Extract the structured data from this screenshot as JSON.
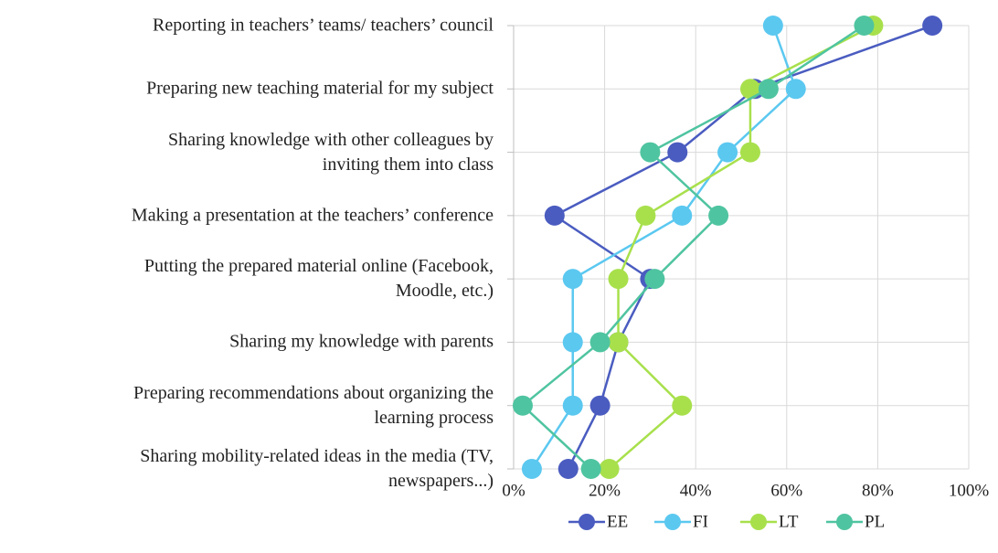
{
  "chart_data": {
    "type": "line",
    "orientation": "horizontal",
    "categories": [
      "Reporting in teachers’ teams/ teachers’ council",
      "Preparing new teaching material for my subject",
      "Sharing knowledge with other colleagues by\ninviting them into class",
      "Making a presentation at the teachers’ conference",
      "Putting the prepared material online (Facebook,\nMoodle, etc.)",
      "Sharing my knowledge with parents",
      "Preparing recommendations about organizing the\nlearning process",
      "Sharing mobility-related ideas in the media (TV,\nnewspapers...)"
    ],
    "series": [
      {
        "name": "EE",
        "color": "#4a5cc0",
        "values": [
          92,
          53,
          36,
          9,
          30,
          23,
          19,
          12
        ]
      },
      {
        "name": "FI",
        "color": "#5bc8f0",
        "values": [
          57,
          62,
          47,
          37,
          13,
          13,
          13,
          4
        ]
      },
      {
        "name": "LT",
        "color": "#a8e04c",
        "values": [
          79,
          52,
          52,
          29,
          23,
          23,
          37,
          21
        ]
      },
      {
        "name": "PL",
        "color": "#4fc4a0",
        "values": [
          77,
          56,
          30,
          45,
          31,
          19,
          2,
          17
        ]
      }
    ],
    "xlim": [
      0,
      100
    ],
    "xticks": [
      {
        "value": 0,
        "label": "0%"
      },
      {
        "value": 20,
        "label": "20%"
      },
      {
        "value": 40,
        "label": "40%"
      },
      {
        "value": 60,
        "label": "60%"
      },
      {
        "value": 80,
        "label": "80%"
      },
      {
        "value": 100,
        "label": "100%"
      }
    ],
    "grid": true,
    "legend": "bottom"
  }
}
